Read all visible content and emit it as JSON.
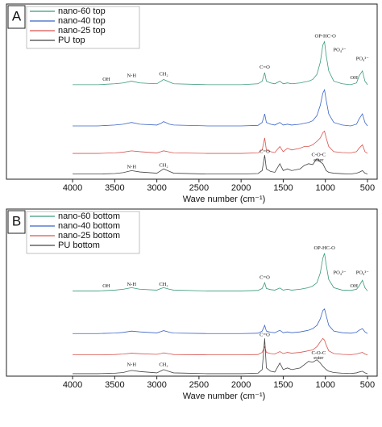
{
  "chart_data": [
    {
      "type": "line",
      "panel_label": "A",
      "xlabel": "Wave number (cm⁻¹)",
      "xlim": [
        4785,
        385
      ],
      "ylim": [
        0,
        100
      ],
      "xticks": [
        4000,
        3500,
        3000,
        2500,
        2000,
        1500,
        1000,
        500
      ],
      "x": [
        4000,
        3700,
        3500,
        3400,
        3300,
        3200,
        3000,
        2950,
        2920,
        2850,
        2800,
        2400,
        2000,
        1800,
        1750,
        1720,
        1700,
        1650,
        1600,
        1540,
        1500,
        1450,
        1400,
        1300,
        1250,
        1200,
        1150,
        1100,
        1060,
        1030,
        1010,
        990,
        960,
        900,
        800,
        700,
        630,
        600,
        560,
        530,
        500
      ],
      "series": [
        {
          "name": "nano-60 top",
          "color": "#3a9a7a",
          "values": [
            55,
            55,
            55.5,
            56,
            57,
            56,
            55.5,
            57,
            58,
            56.5,
            55.5,
            55,
            55,
            55.5,
            57,
            62,
            57,
            56,
            55.5,
            57,
            55.5,
            56,
            55.5,
            56,
            56.5,
            57,
            58,
            61,
            68,
            78,
            80,
            72,
            63,
            57,
            55.5,
            55,
            56,
            60,
            63,
            57,
            55
          ]
        },
        {
          "name": "nano-40 top",
          "color": "#3a64c8",
          "values": [
            31,
            31,
            31.5,
            32,
            33,
            32,
            31.5,
            32.5,
            33.5,
            32,
            31.5,
            31,
            31,
            31.3,
            33,
            38,
            33,
            32,
            31.5,
            33,
            31.5,
            32,
            31.5,
            32,
            32.5,
            33,
            34,
            37,
            43,
            50,
            52,
            46,
            38,
            33,
            31.5,
            31,
            32,
            35,
            38,
            33,
            31
          ]
        },
        {
          "name": "nano-25 top",
          "color": "#d9534f",
          "values": [
            15,
            15,
            15.3,
            15.7,
            16.5,
            16,
            15.3,
            16,
            16.5,
            15.8,
            15.3,
            15,
            15,
            15.3,
            17,
            24,
            17,
            16,
            15.5,
            19,
            16,
            18,
            17,
            18,
            19,
            19,
            20,
            22,
            24,
            27,
            28,
            24,
            19,
            16,
            15.5,
            15.3,
            16,
            18,
            20,
            16,
            15
          ]
        },
        {
          "name": "PU top",
          "color": "#444444",
          "values": [
            3,
            3,
            3.3,
            3.8,
            5,
            4.2,
            3.5,
            5,
            6,
            4.5,
            3.5,
            3,
            3,
            3.3,
            5,
            14,
            6,
            4.5,
            4,
            9,
            5,
            6,
            5,
            6,
            8,
            9,
            8.5,
            12,
            10,
            9,
            7,
            5,
            4,
            3.5,
            3.2,
            3,
            3.5,
            4,
            5,
            3.5,
            3
          ]
        }
      ],
      "annotations": [
        {
          "text": "OH",
          "x": 3600,
          "y": 58
        },
        {
          "text": "N-H",
          "x": 3300,
          "y": 60
        },
        {
          "text": "CH₂",
          "x": 2920,
          "y": 61
        },
        {
          "text": "C=O",
          "x": 1720,
          "y": 65
        },
        {
          "text": "OP-HC-O",
          "x": 1000,
          "y": 83
        },
        {
          "text": "PO₄³⁻",
          "x": 830,
          "y": 75
        },
        {
          "text": "PO₄³⁻",
          "x": 560,
          "y": 70
        },
        {
          "text": "OH",
          "x": 660,
          "y": 59
        },
        {
          "text": "N-H",
          "x": 3300,
          "y": 7
        },
        {
          "text": "CH₂",
          "x": 2920,
          "y": 8
        },
        {
          "text": "C=O",
          "x": 1720,
          "y": 16
        },
        {
          "text": "C-O-C",
          "x": 1080,
          "y": 14
        },
        {
          "text": "ester",
          "x": 1080,
          "y": 11
        }
      ]
    },
    {
      "type": "line",
      "panel_label": "B",
      "xlabel": "Wave number (cm⁻¹)",
      "xlim": [
        4785,
        385
      ],
      "ylim": [
        0,
        100
      ],
      "xticks": [
        4000,
        3500,
        3000,
        2500,
        2000,
        1500,
        1000,
        500
      ],
      "x": [
        4000,
        3700,
        3500,
        3400,
        3300,
        3200,
        3000,
        2950,
        2920,
        2850,
        2800,
        2400,
        2000,
        1800,
        1750,
        1720,
        1700,
        1650,
        1600,
        1540,
        1500,
        1450,
        1400,
        1300,
        1250,
        1200,
        1150,
        1100,
        1060,
        1030,
        1010,
        990,
        960,
        900,
        800,
        700,
        630,
        600,
        560,
        530,
        500
      ],
      "series": [
        {
          "name": "nano-60 bottom",
          "color": "#3a9a7a",
          "values": [
            52,
            52,
            52.5,
            53,
            54,
            53,
            52.5,
            53.5,
            54,
            53,
            52.5,
            52,
            52,
            52.3,
            53.5,
            57,
            53.5,
            52.8,
            52.5,
            53.8,
            52.5,
            53,
            52.5,
            53,
            53.5,
            54,
            55,
            57,
            63,
            72,
            75,
            68,
            59,
            54,
            52.5,
            52.3,
            53,
            55,
            58.5,
            54,
            52
          ]
        },
        {
          "name": "nano-40 bottom",
          "color": "#3a64c8",
          "values": [
            26,
            26,
            26.3,
            26.7,
            27.5,
            27,
            26.4,
            27.2,
            27.8,
            26.8,
            26.3,
            26,
            26,
            26.2,
            27.5,
            31,
            27.5,
            26.8,
            26.5,
            28,
            26.5,
            27,
            26.5,
            27,
            27.5,
            28,
            29,
            31,
            35,
            40,
            41,
            37,
            31,
            27.5,
            26.5,
            26.2,
            26.8,
            28,
            29,
            27,
            26
          ]
        },
        {
          "name": "nano-25 bottom",
          "color": "#d9534f",
          "values": [
            13,
            13,
            13.2,
            13.5,
            14,
            13.7,
            13.3,
            13.8,
            14.2,
            13.6,
            13.2,
            13,
            13,
            13.2,
            14.5,
            18,
            14.5,
            13.8,
            13.5,
            15,
            13.8,
            14.5,
            14,
            14.5,
            15,
            15.5,
            16,
            18,
            21,
            23,
            22,
            19,
            15.5,
            13.8,
            13.3,
            13.1,
            13.5,
            14,
            14.5,
            13.5,
            13
          ]
        },
        {
          "name": "PU bottom",
          "color": "#444444",
          "values": [
            1.5,
            1.5,
            1.8,
            2.2,
            3.5,
            2.8,
            2,
            3.2,
            4,
            2.8,
            2,
            1.5,
            1.5,
            1.8,
            4,
            23,
            5,
            3,
            2.5,
            8,
            4,
            5,
            4,
            5,
            7,
            9,
            8.5,
            10,
            8,
            6,
            5,
            4,
            3,
            2.2,
            1.8,
            1.6,
            2,
            2.5,
            3,
            2,
            1.5
          ]
        }
      ],
      "annotations": [
        {
          "text": "OH",
          "x": 3600,
          "y": 55
        },
        {
          "text": "N-H",
          "x": 3300,
          "y": 56
        },
        {
          "text": "CH₂",
          "x": 2920,
          "y": 56
        },
        {
          "text": "C=O",
          "x": 1720,
          "y": 60
        },
        {
          "text": "OP-HC-O",
          "x": 1010,
          "y": 78
        },
        {
          "text": "PO₄³⁻",
          "x": 830,
          "y": 63
        },
        {
          "text": "PO₄³⁻",
          "x": 560,
          "y": 63
        },
        {
          "text": "OH",
          "x": 660,
          "y": 55
        },
        {
          "text": "N-H",
          "x": 3300,
          "y": 7
        },
        {
          "text": "CH₂",
          "x": 2920,
          "y": 7
        },
        {
          "text": "C=O",
          "x": 1720,
          "y": 25
        },
        {
          "text": "C-O-C",
          "x": 1080,
          "y": 14
        },
        {
          "text": "ester",
          "x": 1080,
          "y": 11
        }
      ]
    }
  ]
}
